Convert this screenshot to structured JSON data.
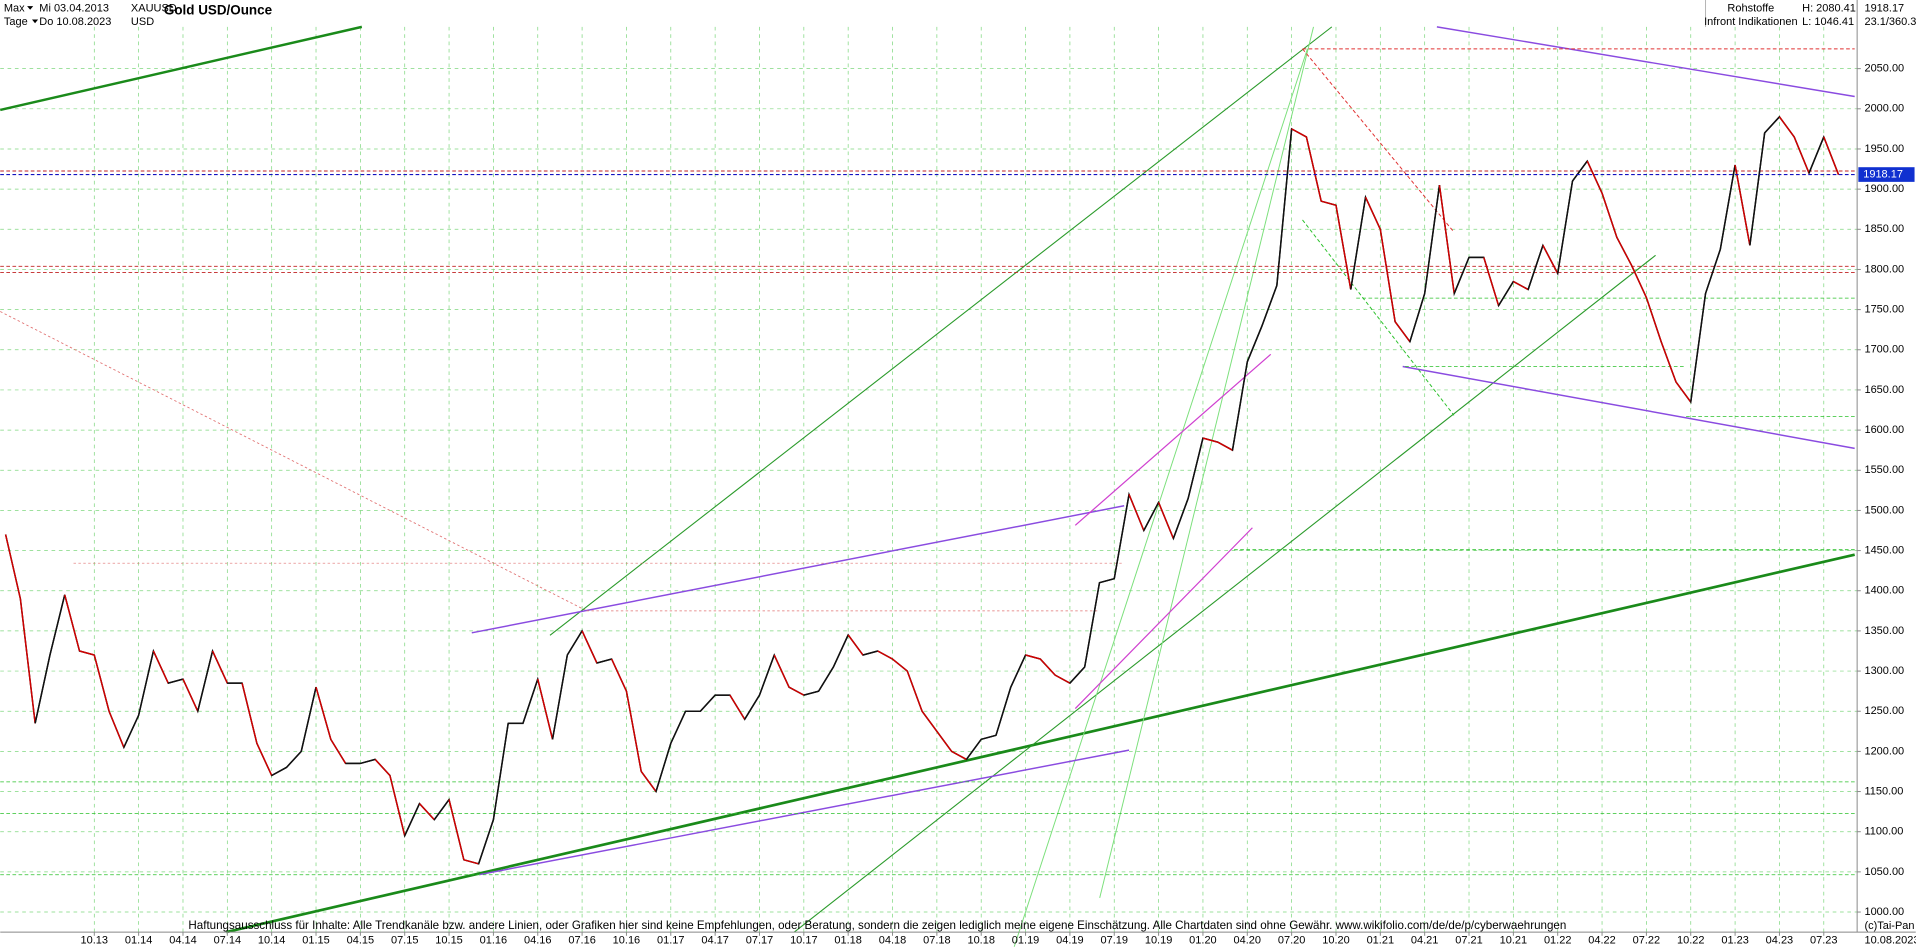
{
  "header": {
    "range": "Max",
    "start": "Mi 03.04.2013",
    "symbol": "XAUUSD",
    "period": "Tage",
    "end": "Do 10.08.2023",
    "currency": "USD",
    "category": "Rohstoffe",
    "source": "Infront Indikationen",
    "high": "H: 2080.41",
    "low": "L: 1046.41",
    "stats": "23.1/360.3"
  },
  "footer": {
    "disclaimer": "Haftungsausschluss für Inhalte: Alle Trendkanäle bzw. andere Linien, oder Grafiken hier sind keine Empfehlungen, oder Beratung, sondern die zeigen lediglich meine eigene Einschätzung. Alle Chartdaten sind ohne Gewähr.  www.wikifolio.com/de/de/p/cyberwaehrungen",
    "copyright": "(c)Tai-Pan",
    "date": "10.08.2023"
  },
  "chart_data": {
    "type": "line",
    "title": "Gold USD/Ounce",
    "color": "#111111",
    "last_value": 1918.17,
    "grid": true,
    "x": [
      "04.13",
      "05.13",
      "06.13",
      "07.13",
      "08.13",
      "09.13",
      "10.13",
      "11.13",
      "12.13",
      "01.14",
      "02.14",
      "03.14",
      "04.14",
      "05.14",
      "06.14",
      "07.14",
      "08.14",
      "09.14",
      "10.14",
      "11.14",
      "12.14",
      "01.15",
      "02.15",
      "03.15",
      "04.15",
      "05.15",
      "06.15",
      "07.15",
      "08.15",
      "09.15",
      "10.15",
      "11.15",
      "12.15",
      "01.16",
      "02.16",
      "03.16",
      "04.16",
      "05.16",
      "06.16",
      "07.16",
      "08.16",
      "09.16",
      "10.16",
      "11.16",
      "12.16",
      "01.17",
      "02.17",
      "03.17",
      "04.17",
      "05.17",
      "06.17",
      "07.17",
      "08.17",
      "09.17",
      "10.17",
      "11.17",
      "12.17",
      "01.18",
      "02.18",
      "03.18",
      "04.18",
      "05.18",
      "06.18",
      "07.18",
      "08.18",
      "09.18",
      "10.18",
      "11.18",
      "12.18",
      "01.19",
      "02.19",
      "03.19",
      "04.19",
      "05.19",
      "06.19",
      "07.19",
      "08.19",
      "09.19",
      "10.19",
      "11.19",
      "12.19",
      "01.20",
      "02.20",
      "03.20",
      "04.20",
      "05.20",
      "06.20",
      "07.20",
      "08.20",
      "09.20",
      "10.20",
      "11.20",
      "12.20",
      "01.21",
      "02.21",
      "03.21",
      "04.21",
      "05.21",
      "06.21",
      "07.21",
      "08.21",
      "09.21",
      "10.21",
      "11.21",
      "12.21",
      "01.22",
      "02.22",
      "03.22",
      "04.22",
      "05.22",
      "06.22",
      "07.22",
      "08.22",
      "09.22",
      "10.22",
      "11.22",
      "12.22",
      "01.23",
      "02.23",
      "03.23",
      "04.23",
      "05.23",
      "06.23",
      "07.23",
      "08.23"
    ],
    "values": [
      1470,
      1390,
      1235,
      1320,
      1395,
      1325,
      1320,
      1250,
      1205,
      1245,
      1325,
      1285,
      1290,
      1250,
      1325,
      1285,
      1285,
      1210,
      1170,
      1180,
      1200,
      1280,
      1215,
      1185,
      1185,
      1190,
      1170,
      1095,
      1135,
      1115,
      1140,
      1065,
      1060,
      1115,
      1235,
      1235,
      1290,
      1215,
      1320,
      1350,
      1310,
      1315,
      1275,
      1175,
      1150,
      1210,
      1250,
      1250,
      1270,
      1270,
      1240,
      1270,
      1320,
      1280,
      1270,
      1275,
      1305,
      1345,
      1320,
      1325,
      1315,
      1300,
      1250,
      1225,
      1200,
      1190,
      1215,
      1220,
      1280,
      1320,
      1315,
      1295,
      1285,
      1305,
      1410,
      1415,
      1520,
      1475,
      1510,
      1465,
      1515,
      1590,
      1585,
      1575,
      1685,
      1730,
      1780,
      1975,
      1965,
      1885,
      1880,
      1775,
      1890,
      1850,
      1735,
      1710,
      1770,
      1905,
      1770,
      1815,
      1815,
      1755,
      1785,
      1775,
      1830,
      1795,
      1910,
      1935,
      1895,
      1840,
      1805,
      1765,
      1710,
      1660,
      1635,
      1770,
      1825,
      1930,
      1830,
      1970,
      1990,
      1965,
      1920,
      1965,
      1918
    ],
    "xticks": [
      "10.13",
      "01.14",
      "04.14",
      "07.14",
      "10.14",
      "01.15",
      "04.15",
      "07.15",
      "10.15",
      "01.16",
      "04.16",
      "07.16",
      "10.16",
      "01.17",
      "04.17",
      "07.17",
      "10.17",
      "01.18",
      "04.18",
      "07.18",
      "10.18",
      "01.19",
      "04.19",
      "07.19",
      "10.19",
      "01.20",
      "04.20",
      "07.20",
      "10.20",
      "01.21",
      "04.21",
      "07.21",
      "10.21",
      "01.22",
      "04.22",
      "07.22",
      "10.22",
      "01.23",
      "04.23",
      "07.23"
    ],
    "ylim": [
      975,
      2102
    ],
    "yticks": [
      {
        "value": 1000,
        "label": "1000.00"
      },
      {
        "value": 1050,
        "label": "1050.00"
      },
      {
        "value": 1100,
        "label": "1100.00"
      },
      {
        "value": 1150,
        "label": "1150.00"
      },
      {
        "value": 1200,
        "label": "1200.00"
      },
      {
        "value": 1250,
        "label": "1250.00"
      },
      {
        "value": 1300,
        "label": "1300.00"
      },
      {
        "value": 1350,
        "label": "1350.00"
      },
      {
        "value": 1400,
        "label": "1400.00"
      },
      {
        "value": 1450,
        "label": "1450.00"
      },
      {
        "value": 1500,
        "label": "1500.00"
      },
      {
        "value": 1550,
        "label": "1550.00"
      },
      {
        "value": 1600,
        "label": "1600.00"
      },
      {
        "value": 1650,
        "label": "1650.00"
      },
      {
        "value": 1700,
        "label": "1700.00"
      },
      {
        "value": 1750,
        "label": "1750.00"
      },
      {
        "value": 1800,
        "label": "1800.00"
      },
      {
        "value": 1850,
        "label": "1850.00"
      },
      {
        "value": 1900,
        "label": "1900.00"
      },
      {
        "value": 1950,
        "label": "1950.00"
      },
      {
        "value": 2000,
        "label": "2000.00"
      },
      {
        "value": 2050,
        "label": "2050.00"
      }
    ]
  }
}
